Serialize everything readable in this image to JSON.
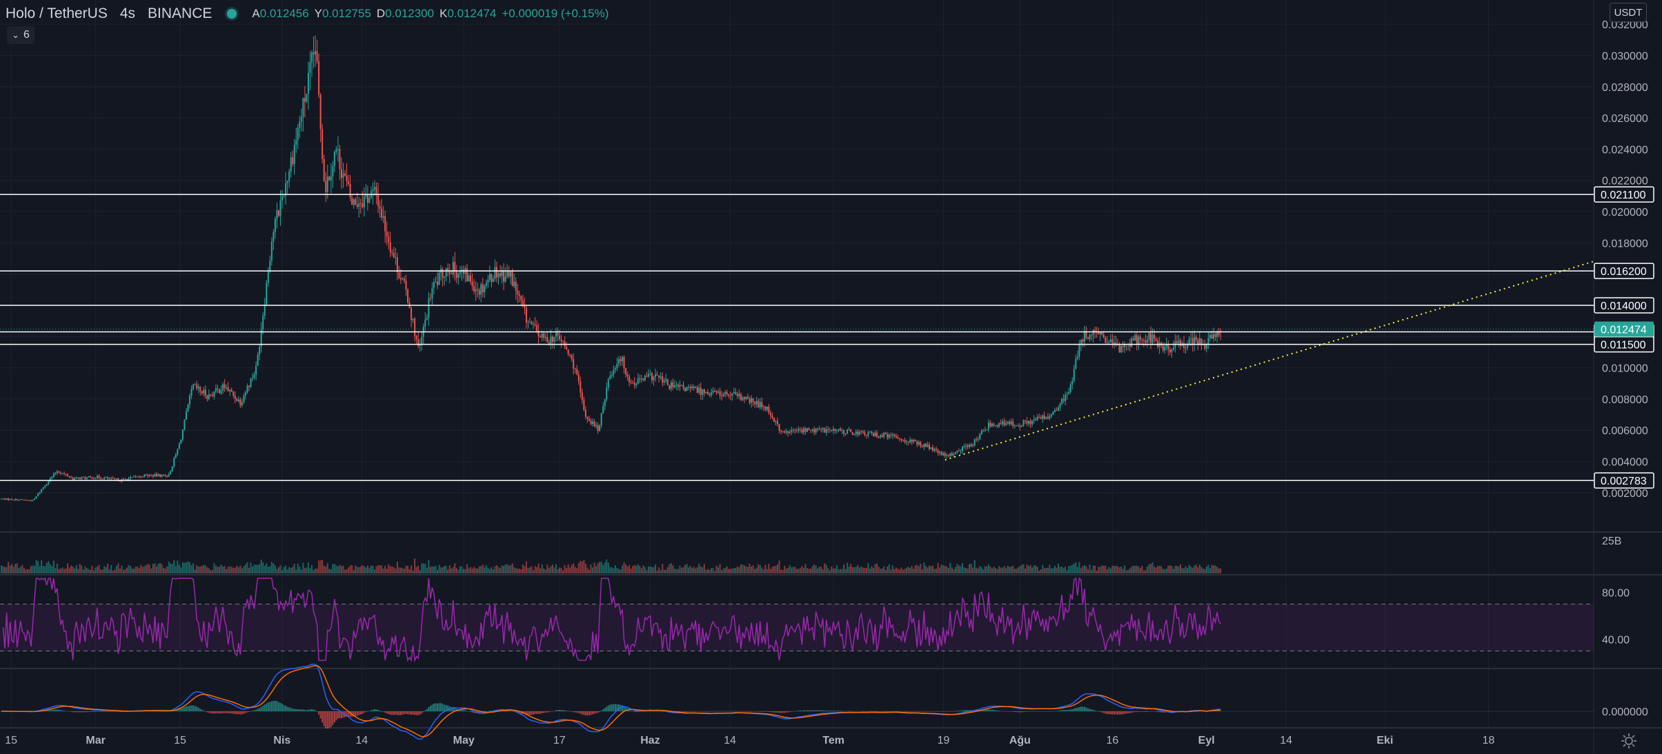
{
  "header": {
    "symbol": "Holo / TetherUS",
    "timeframe": "4s",
    "exchange": "BINANCE",
    "open_label": "A",
    "open": "0.012456",
    "high_label": "Y",
    "high": "0.012755",
    "low_label": "D",
    "low": "0.012300",
    "close_label": "K",
    "close": "0.012474",
    "change": "+0.000019 (+0.15%)"
  },
  "indicators_toggle": {
    "count": "6"
  },
  "currency_button": "USDT",
  "colors": {
    "background": "#131722",
    "up": "#26a69a",
    "down": "#ef5350",
    "rsi": "#9c27b0",
    "trendline": "#ffeb3b",
    "macd": "#2962ff",
    "signal": "#ff6d00",
    "level_line": "#ffffff"
  },
  "chart_data": [
    {
      "type": "candlestick",
      "panel": "price",
      "x_tick_labels": [
        "15",
        "Mar",
        "15",
        "Nis",
        "14",
        "May",
        "17",
        "Haz",
        "14",
        "Tem",
        "19",
        "Ağu",
        "16",
        "Eyl",
        "14",
        "Eki",
        "18"
      ],
      "y_ticks": [
        "0.032000",
        "0.030000",
        "0.028000",
        "0.026000",
        "0.024000",
        "0.022000",
        "0.020000",
        "0.018000",
        "0.016000",
        "0.014000",
        "0.012000",
        "0.010000",
        "0.008000",
        "0.006000",
        "0.004000",
        "0.002000"
      ],
      "ylim": [
        0.0008,
        0.0332
      ],
      "horizontal_levels": [
        {
          "value": 0.0211,
          "label": "0.021100"
        },
        {
          "value": 0.0162,
          "label": "0.016200"
        },
        {
          "value": 0.014,
          "label": "0.014000"
        },
        {
          "value": 0.0123,
          "label": "0.012300"
        },
        {
          "value": 0.0115,
          "label": "0.011500"
        },
        {
          "value": 0.002783,
          "label": "0.002783"
        }
      ],
      "last_price": {
        "value": 0.012474,
        "label": "0.012474"
      },
      "trendline": {
        "points": [
          [
            0.593,
            0.0041
          ],
          [
            0.958,
            0.0155
          ]
        ]
      },
      "price_path": [
        [
          0.0,
          0.0016
        ],
        [
          0.02,
          0.0015
        ],
        [
          0.025,
          0.0022
        ],
        [
          0.035,
          0.0034
        ],
        [
          0.045,
          0.0029
        ],
        [
          0.06,
          0.003
        ],
        [
          0.075,
          0.0028
        ],
        [
          0.09,
          0.0031
        ],
        [
          0.105,
          0.0031
        ],
        [
          0.112,
          0.0052
        ],
        [
          0.12,
          0.0088
        ],
        [
          0.13,
          0.0082
        ],
        [
          0.14,
          0.0088
        ],
        [
          0.15,
          0.0078
        ],
        [
          0.16,
          0.01
        ],
        [
          0.17,
          0.0185
        ],
        [
          0.18,
          0.0225
        ],
        [
          0.19,
          0.027
        ],
        [
          0.197,
          0.0305
        ],
        [
          0.203,
          0.0215
        ],
        [
          0.21,
          0.024
        ],
        [
          0.22,
          0.0205
        ],
        [
          0.235,
          0.0212
        ],
        [
          0.245,
          0.0175
        ],
        [
          0.255,
          0.0145
        ],
        [
          0.262,
          0.011
        ],
        [
          0.27,
          0.015
        ],
        [
          0.28,
          0.0165
        ],
        [
          0.29,
          0.016
        ],
        [
          0.3,
          0.015
        ],
        [
          0.31,
          0.0162
        ],
        [
          0.32,
          0.0158
        ],
        [
          0.33,
          0.013
        ],
        [
          0.34,
          0.0118
        ],
        [
          0.35,
          0.012
        ],
        [
          0.36,
          0.01
        ],
        [
          0.366,
          0.007
        ],
        [
          0.375,
          0.006
        ],
        [
          0.38,
          0.009
        ],
        [
          0.388,
          0.0108
        ],
        [
          0.395,
          0.009
        ],
        [
          0.41,
          0.0095
        ],
        [
          0.42,
          0.0088
        ],
        [
          0.44,
          0.0085
        ],
        [
          0.46,
          0.0082
        ],
        [
          0.48,
          0.0075
        ],
        [
          0.49,
          0.0058
        ],
        [
          0.5,
          0.006
        ],
        [
          0.52,
          0.006
        ],
        [
          0.54,
          0.0058
        ],
        [
          0.56,
          0.0056
        ],
        [
          0.58,
          0.005
        ],
        [
          0.593,
          0.0043
        ],
        [
          0.61,
          0.0052
        ],
        [
          0.62,
          0.0064
        ],
        [
          0.64,
          0.0064
        ],
        [
          0.66,
          0.007
        ],
        [
          0.67,
          0.0085
        ],
        [
          0.675,
          0.0108
        ],
        [
          0.68,
          0.0122
        ],
        [
          0.69,
          0.012
        ],
        [
          0.7,
          0.0112
        ],
        [
          0.71,
          0.0118
        ],
        [
          0.72,
          0.012
        ],
        [
          0.73,
          0.0112
        ],
        [
          0.74,
          0.0115
        ],
        [
          0.75,
          0.0118
        ],
        [
          0.755,
          0.0114
        ],
        [
          0.76,
          0.012
        ]
      ]
    },
    {
      "type": "bar",
      "panel": "volume",
      "y_ticks": [
        "25B"
      ]
    },
    {
      "type": "line",
      "panel": "rsi",
      "y_ticks": [
        "80.00",
        "40.00"
      ],
      "bands": [
        70,
        30
      ],
      "ylim": [
        15,
        95
      ]
    },
    {
      "type": "line",
      "panel": "macd",
      "y_ticks": [
        "0.000000"
      ],
      "series": [
        {
          "values": []
        },
        {
          "values": []
        }
      ]
    }
  ]
}
